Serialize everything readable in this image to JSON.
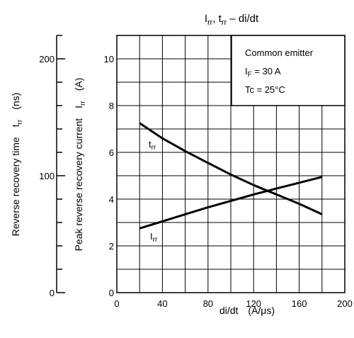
{
  "chart_data": {
    "type": "line",
    "title": {
      "main": "I",
      "main_sub": "rr",
      "mid": ", t",
      "mid_sub": "rr",
      "tail": " – di/dt"
    },
    "xlabel": {
      "name": "di/dt",
      "unit": "(A/μs)"
    },
    "xlim": [
      0,
      200
    ],
    "x_ticks": [
      "0",
      "40",
      "80",
      "120",
      "160",
      "200"
    ],
    "y_left_current": {
      "label": "Peak reverse recovery current",
      "symbol": "I",
      "symbol_sub": "rr",
      "unit": "(A)",
      "ylim": [
        0,
        11
      ],
      "ticks": [
        "0",
        "2",
        "4",
        "6",
        "8",
        "10"
      ]
    },
    "y_left_time": {
      "label": "Reverse recovery time",
      "symbol": "t",
      "symbol_sub": "rr",
      "unit": "(ns)",
      "ylim": [
        0,
        220
      ],
      "ticks": [
        "0",
        "100",
        "200"
      ]
    },
    "legend_box": {
      "line1": "Common emitter",
      "line2_main": "I",
      "line2_sub": "F",
      "line2_tail": " = 30 A",
      "line3": "Tc = 25°C"
    },
    "series": [
      {
        "name": "t",
        "name_sub": "rr",
        "axis": "time",
        "x": [
          20,
          40,
          60,
          80,
          100,
          120,
          140,
          160,
          180
        ],
        "y": [
          145,
          132,
          121,
          111,
          101,
          92,
          84,
          76,
          67
        ]
      },
      {
        "name": "I",
        "name_sub": "rr",
        "axis": "current",
        "x": [
          20,
          40,
          60,
          80,
          100,
          120,
          140,
          160,
          180
        ],
        "y": [
          2.75,
          3.05,
          3.35,
          3.65,
          3.92,
          4.2,
          4.45,
          4.7,
          4.95
        ]
      }
    ]
  }
}
